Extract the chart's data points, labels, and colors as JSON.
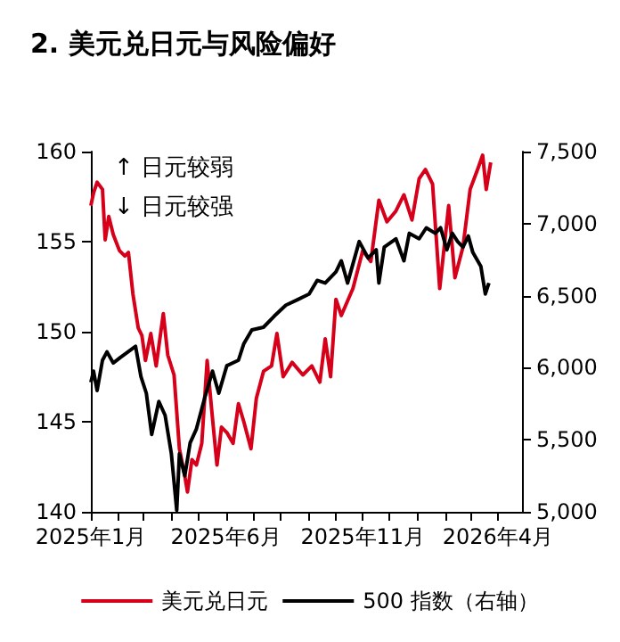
{
  "chart_data": {
    "type": "line",
    "title": "2. 美元兑日元与风险偏好",
    "annotations": [
      "↑ 日元较弱",
      "↓ 日元较强"
    ],
    "xlim": [
      "2025-01-01",
      "2026-04-28"
    ],
    "xticks": [
      {
        "value": "2025-01",
        "label": "2025年1月"
      },
      {
        "value": "2025-02",
        "label": null
      },
      {
        "value": "2025-03",
        "label": null
      },
      {
        "value": "2025-04",
        "label": null
      },
      {
        "value": "2025-05",
        "label": null
      },
      {
        "value": "2025-06",
        "label": "2025年6月"
      },
      {
        "value": "2025-07",
        "label": null
      },
      {
        "value": "2025-08",
        "label": null
      },
      {
        "value": "2025-09",
        "label": null
      },
      {
        "value": "2025-10",
        "label": null
      },
      {
        "value": "2025-11",
        "label": "2025年11月"
      },
      {
        "value": "2025-12",
        "label": null
      },
      {
        "value": "2026-01",
        "label": null
      },
      {
        "value": "2026-02",
        "label": null
      },
      {
        "value": "2026-03",
        "label": null
      },
      {
        "value": "2026-04",
        "label": "2026年4月"
      }
    ],
    "ylim": [
      140,
      160
    ],
    "yticks": [
      140,
      145,
      150,
      155,
      160
    ],
    "y2lim": [
      5000,
      7500
    ],
    "y2ticks": [
      {
        "value": 5000,
        "label": "5,000"
      },
      {
        "value": 5500,
        "label": "5,500"
      },
      {
        "value": 6000,
        "label": "6,000"
      },
      {
        "value": 6500,
        "label": "6,500"
      },
      {
        "value": 7000,
        "label": "7,000"
      },
      {
        "value": 7500,
        "label": "7,500"
      }
    ],
    "legend": "bottom",
    "grid": false,
    "marker": "none",
    "line_style": "solid",
    "series": [
      {
        "name": "美元兑日元",
        "color": "#d7001a",
        "x": [
          "2025-01-01",
          "2025-01-04",
          "2025-01-08",
          "2025-01-14",
          "2025-01-17",
          "2025-01-21",
          "2025-01-26",
          "2025-02-02",
          "2025-02-08",
          "2025-02-12",
          "2025-02-17",
          "2025-02-23",
          "2025-02-27",
          "2025-03-03",
          "2025-03-09",
          "2025-03-15",
          "2025-03-23",
          "2025-03-28",
          "2025-04-04",
          "2025-04-10",
          "2025-04-16",
          "2025-04-19",
          "2025-04-24",
          "2025-04-29",
          "2025-05-05",
          "2025-05-11",
          "2025-05-16",
          "2025-05-22",
          "2025-05-27",
          "2025-06-02",
          "2025-06-09",
          "2025-06-15",
          "2025-06-21",
          "2025-06-29",
          "2025-07-05",
          "2025-07-13",
          "2025-07-22",
          "2025-07-28",
          "2025-08-04",
          "2025-08-14",
          "2025-08-26",
          "2025-09-05",
          "2025-09-14",
          "2025-09-20",
          "2025-09-26",
          "2025-10-02",
          "2025-10-08",
          "2025-10-21",
          "2025-11-01",
          "2025-11-10",
          "2025-11-19",
          "2025-11-28",
          "2025-12-08",
          "2025-12-17",
          "2025-12-26",
          "2026-01-03",
          "2026-01-10",
          "2026-01-18",
          "2026-01-26",
          "2026-02-05",
          "2026-02-12",
          "2026-02-21",
          "2026-03-01",
          "2026-03-10",
          "2026-03-15",
          "2026-03-19",
          "2026-03-24"
        ],
        "values": [
          157.0,
          157.7,
          158.3,
          157.9,
          155.1,
          156.4,
          155.4,
          154.5,
          154.2,
          154.4,
          152.1,
          150.2,
          149.8,
          148.4,
          149.9,
          148.1,
          151.0,
          148.7,
          147.6,
          143.5,
          142.0,
          141.1,
          142.9,
          142.6,
          143.8,
          148.4,
          145.7,
          142.6,
          144.7,
          144.4,
          143.8,
          146.0,
          145.0,
          143.5,
          146.3,
          147.8,
          148.1,
          149.9,
          147.5,
          148.3,
          147.6,
          148.1,
          147.2,
          149.6,
          147.5,
          151.8,
          150.9,
          152.4,
          154.5,
          153.9,
          157.3,
          156.1,
          156.7,
          157.6,
          156.2,
          158.5,
          159.0,
          158.2,
          152.4,
          157.0,
          153.0,
          154.7,
          157.9,
          159.1,
          159.8,
          157.9,
          159.4
        ]
      },
      {
        "name": "500 指数（右轴）",
        "color": "#000000",
        "axis": "y2",
        "x": [
          "2025-01-01",
          "2025-01-04",
          "2025-01-08",
          "2025-01-14",
          "2025-01-19",
          "2025-01-26",
          "2025-02-03",
          "2025-02-20",
          "2025-02-26",
          "2025-03-04",
          "2025-03-10",
          "2025-03-18",
          "2025-03-25",
          "2025-04-01",
          "2025-04-07",
          "2025-04-10",
          "2025-04-16",
          "2025-04-22",
          "2025-04-29",
          "2025-05-08",
          "2025-05-17",
          "2025-05-24",
          "2025-06-02",
          "2025-06-15",
          "2025-06-21",
          "2025-06-30",
          "2025-07-13",
          "2025-07-25",
          "2025-08-07",
          "2025-08-20",
          "2025-09-02",
          "2025-09-11",
          "2025-09-20",
          "2025-10-02",
          "2025-10-08",
          "2025-10-15",
          "2025-10-28",
          "2025-11-07",
          "2025-11-16",
          "2025-11-19",
          "2025-11-25",
          "2025-12-08",
          "2025-12-17",
          "2025-12-23",
          "2026-01-03",
          "2026-01-11",
          "2026-01-21",
          "2026-01-27",
          "2026-02-03",
          "2026-02-09",
          "2026-02-15",
          "2026-02-21",
          "2026-02-27",
          "2026-03-04",
          "2026-03-13",
          "2026-03-18",
          "2026-03-22"
        ],
        "values": [
          5899,
          5976,
          5842,
          6052,
          6110,
          6033,
          6071,
          6148,
          5938,
          5823,
          5537,
          5766,
          5670,
          5403,
          5010,
          5403,
          5250,
          5479,
          5575,
          5785,
          5976,
          5823,
          6014,
          6052,
          6167,
          6262,
          6281,
          6358,
          6434,
          6472,
          6511,
          6606,
          6588,
          6665,
          6742,
          6588,
          6876,
          6761,
          6818,
          6588,
          6837,
          6895,
          6742,
          6933,
          6895,
          6971,
          6933,
          6971,
          6818,
          6933,
          6876,
          6837,
          6914,
          6800,
          6703,
          6512,
          6588
        ]
      }
    ]
  }
}
